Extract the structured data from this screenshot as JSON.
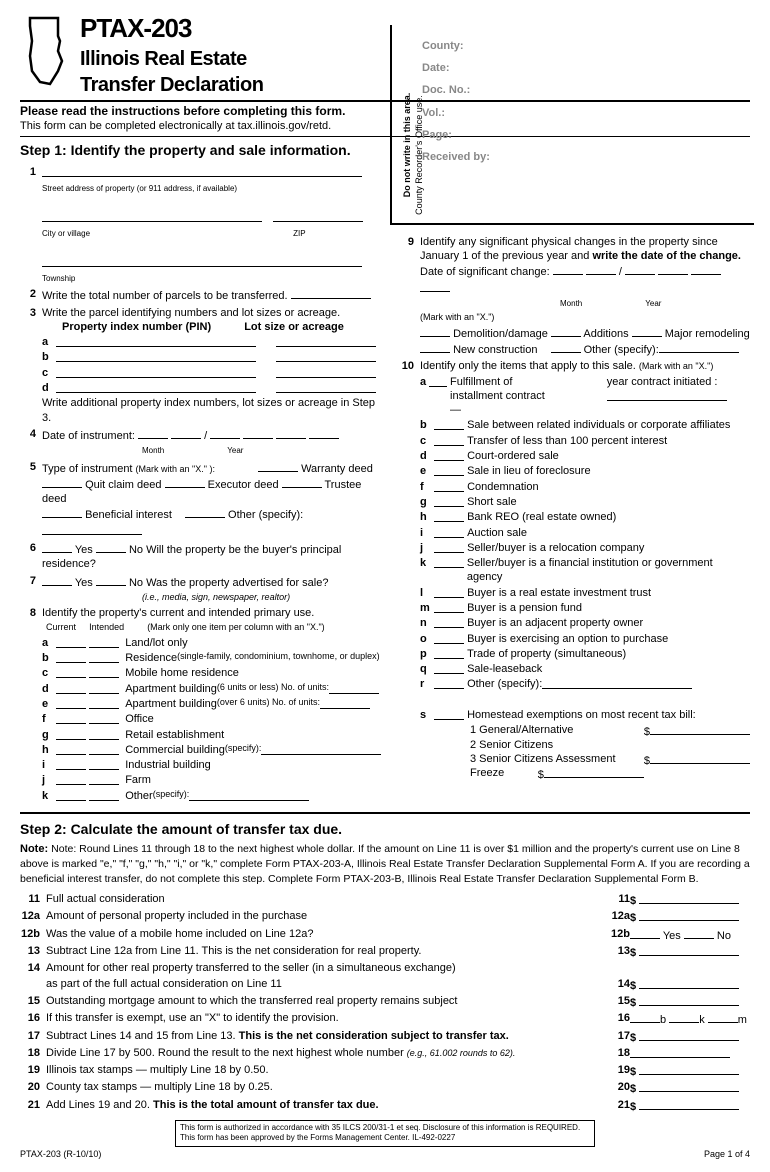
{
  "form": {
    "code": "PTAX-203",
    "title1": "Illinois Real Estate",
    "title2": "Transfer Declaration",
    "rev": "PTAX-203 (R-10/10)",
    "page": "Page 1 of 4"
  },
  "instructions": {
    "l1": "Please read the instructions before completing this form.",
    "l2": "This form can be completed electronically at tax.illinois.gov/retd."
  },
  "step1_hdr": "Step 1:  Identify the property and sale information.",
  "recorder": {
    "vert1": "Do not write in this area.",
    "vert2": "County Recorder's Office use.",
    "county": "County:",
    "date": "Date:",
    "doc": "Doc. No.:",
    "vol": "Vol.:",
    "pg": "Page:",
    "recv": "Received by:"
  },
  "q1": {
    "street_lbl": "Street address of property (or 911 address, if available)",
    "city_lbl": "City or village",
    "zip_lbl": "ZIP",
    "twp_lbl": "Township"
  },
  "q2": "Write the total number of parcels to be transferred.",
  "q3": {
    "txt": "Write the parcel identifying numbers and lot sizes or acreage.",
    "h1": "Property index number (PIN)",
    "h2": "Lot size or acreage",
    "note": "Write additional property index numbers, lot sizes or acreage in Step 3."
  },
  "q4": {
    "txt": "Date of instrument:",
    "m": "Month",
    "y": "Year"
  },
  "q5": {
    "txt": "Type of instrument ",
    "mark": "(Mark with an \"X.\" ):",
    "a": "Warranty deed",
    "b": "Quit claim deed",
    "c": "Executor deed",
    "d": "Trustee deed",
    "e": "Beneficial interest",
    "f": "Other (specify):"
  },
  "q6": {
    "y": "Yes",
    "n": "No",
    "txt": "Will the property be the buyer's principal residence?"
  },
  "q7": {
    "y": "Yes",
    "n": "No",
    "txt": "Was the property advertised for sale?",
    "sub": "(i.e., media, sign, newspaper, realtor)"
  },
  "q8": {
    "txt": "Identify the property's current and intended primary use.",
    "c": "Current",
    "i": "Intended",
    "mark": "(Mark only one item per column with an \"X.\")",
    "items": [
      "Land/lot only",
      "Residence",
      "Mobile home residence",
      "Apartment building",
      "Apartment building",
      "Office",
      "Retail establishment",
      "Commercial building",
      "Industrial building",
      "Farm",
      "Other"
    ],
    "res_sub": "(single-family, condominium, townhome, or duplex)",
    "apt1_sub": "(6 units or less)  No. of units:",
    "apt2_sub": "(over 6 units)     No. of units:",
    "spec": "(specify):"
  },
  "q9": {
    "txt": "Identify any significant physical changes in the property since January 1 of the previous year and ",
    "bold": "write the date of the change.",
    "date": "Date of significant change:",
    "m": "Month",
    "y": "Year",
    "mark": "(Mark with an \"X.\")",
    "opts": [
      "Demolition/damage",
      "Additions",
      "Major remodeling",
      "New construction",
      "Other (specify):"
    ]
  },
  "q10": {
    "txt": "Identify only the items that apply to this sale. ",
    "mark": "(Mark with an \"X.\")",
    "items": [
      {
        "l": "a",
        "t": "Fulfillment of installment contract —",
        "s": "year contract initiated :"
      },
      {
        "l": "b",
        "t": "Sale between related individuals or corporate affiliates"
      },
      {
        "l": "c",
        "t": "Transfer of less than 100 percent interest"
      },
      {
        "l": "d",
        "t": "Court-ordered sale"
      },
      {
        "l": "e",
        "t": "Sale in lieu of foreclosure"
      },
      {
        "l": "f",
        "t": "Condemnation"
      },
      {
        "l": "g",
        "t": "Short sale"
      },
      {
        "l": "h",
        "t": "Bank REO (real estate owned)"
      },
      {
        "l": "i",
        "t": "Auction sale"
      },
      {
        "l": "j",
        "t": "Seller/buyer is a relocation company"
      },
      {
        "l": "k",
        "t": "Seller/buyer is a financial institution or government agency"
      },
      {
        "l": "l",
        "t": "Buyer is a real estate investment trust"
      },
      {
        "l": "m",
        "t": "Buyer is a pension fund"
      },
      {
        "l": "n",
        "t": "Buyer is an adjacent property owner"
      },
      {
        "l": "o",
        "t": "Buyer is exercising an option to purchase"
      },
      {
        "l": "p",
        "t": "Trade of property (simultaneous)"
      },
      {
        "l": "q",
        "t": "Sale-leaseback"
      },
      {
        "l": "r",
        "t": "Other (specify):"
      }
    ],
    "s": {
      "l": "s",
      "t": "Homestead exemptions on most recent tax bill:",
      "1": "1 General/Alternative",
      "2": "2 Senior Citizens",
      "3": "3 Senior Citizens Assessment Freeze"
    }
  },
  "step2_hdr": "Step 2:  Calculate the amount of transfer tax due.",
  "step2_note": "Note:  Round Lines 11 through 18 to the next highest whole dollar. If the amount on Line 11 is over $1 million and the property's current use on Line 8 above is marked \"e,\" \"f,\" \"g,\" \"h,\" \"i,\" or \"k,\" complete Form PTAX-203-A, Illinois Real Estate Transfer Declaration Supplemental Form A. If you are recording a beneficial interest transfer, do not complete this step. Complete Form PTAX-203-B, Illinois Real Estate Transfer Declaration Supplemental Form B.",
  "calc": [
    {
      "n": "11",
      "d": "Full actual consideration",
      "v": "$"
    },
    {
      "n": "12a",
      "d": "Amount of personal property included in the purchase",
      "v": "$"
    },
    {
      "n": "12b",
      "d": "Was the value of a mobile home included on Line 12a?",
      "v": "yn"
    },
    {
      "n": "13",
      "d": "Subtract Line 12a from Line 11. This is the net consideration for real property.",
      "v": "$"
    },
    {
      "n": "14",
      "d": "Amount for other real property transferred to the seller (in a simultaneous exchange)",
      "d2": "as part of the full actual consideration on Line 11",
      "v": "$"
    },
    {
      "n": "15",
      "d": "Outstanding mortgage amount to which the transferred real property remains subject",
      "v": "$"
    },
    {
      "n": "16",
      "d": "If this transfer is exempt, use an \"X\" to identify the provision.",
      "v": "bkm"
    },
    {
      "n": "17",
      "d": "Subtract Lines 14 and 15 from Line 13. ",
      "b": "This is the net consideration subject to transfer tax.",
      "v": "$"
    },
    {
      "n": "18",
      "d": "Divide Line 17 by 500. Round the result to the next highest whole number ",
      "s": "(e.g., 61.002 rounds to 62).",
      "v": ""
    },
    {
      "n": "19",
      "d": "Illinois tax stamps — multiply Line 18 by 0.50.",
      "v": "$"
    },
    {
      "n": "20",
      "d": "County tax stamps — multiply Line 18 by 0.25.",
      "v": "$"
    },
    {
      "n": "21",
      "d": "Add Lines 19 and 20. ",
      "b": "This is the total amount of transfer tax due.",
      "v": "$"
    }
  ],
  "footer_box": "This form is authorized in accordance with 35 ILCS 200/31-1 et seq. Disclosure of this information is REQUIRED. This form has been approved by the Forms Management Center.        IL-492-0227",
  "dollar": "$",
  "yes": "Yes",
  "no": "No",
  "b": "b",
  "k": "k",
  "m": "m"
}
